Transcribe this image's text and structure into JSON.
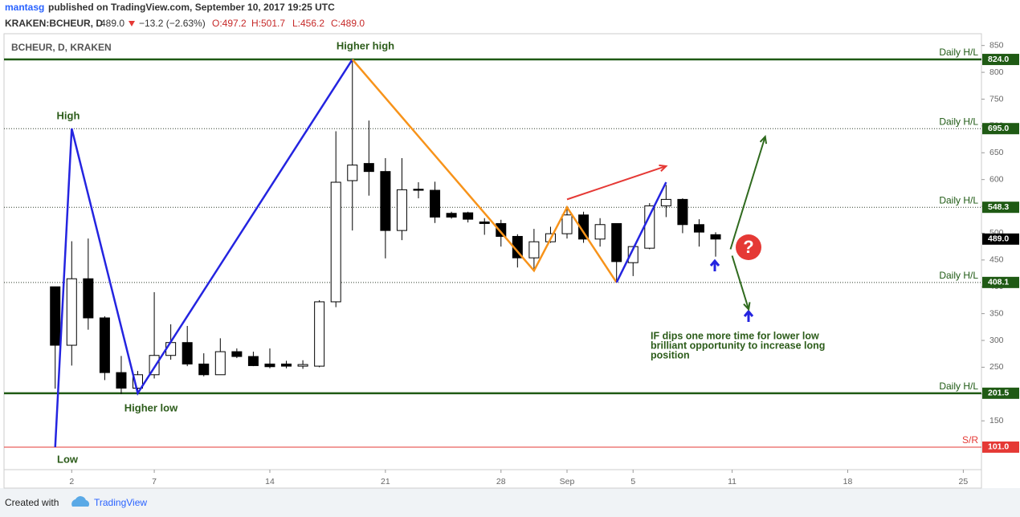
{
  "header": {
    "user": "mantasg",
    "published": "published on TradingView.com, September 10, 2017 19:25 UTC",
    "symbol": "KRAKEN:BCHEUR, D",
    "price": "489.0",
    "change": "−13.2 (−2.63%)",
    "open": "O:497.2",
    "high": "H:501.7",
    "low": "L:456.2",
    "close": "C:489.0"
  },
  "footer": {
    "created": "Created with",
    "brand": "TradingView"
  },
  "chart_data": {
    "type": "candlestick",
    "title": "BCHEUR, D, KRAKEN",
    "x": [
      1,
      2,
      3,
      4,
      5,
      6,
      7,
      8,
      9,
      10,
      11,
      12,
      13,
      14,
      15,
      16,
      17,
      18,
      19,
      20,
      21,
      22,
      23,
      24,
      25,
      26,
      27,
      28,
      29,
      30,
      31,
      32,
      33,
      34,
      35,
      36,
      37,
      38,
      39,
      40,
      41
    ],
    "open": [
      400,
      291,
      415,
      342,
      240,
      211,
      236,
      272,
      296,
      256,
      236,
      279,
      270,
      256,
      256,
      252,
      252,
      372,
      598,
      630,
      615,
      505,
      582,
      580,
      537,
      538,
      521,
      518,
      494,
      454,
      484,
      499,
      534,
      489,
      518,
      445,
      472,
      551,
      563,
      516,
      497.2
    ],
    "high": [
      400,
      485,
      490,
      345,
      271,
      243,
      390,
      330,
      327,
      276,
      304,
      285,
      279,
      285,
      262,
      263,
      375,
      690,
      824,
      710,
      640,
      640,
      595,
      596,
      540,
      540,
      528,
      525,
      498,
      508,
      512,
      548,
      540,
      528,
      518,
      476,
      556,
      590,
      565,
      526,
      501.7
    ],
    "low": [
      210,
      253,
      320,
      226,
      200,
      204,
      229,
      264,
      252,
      233,
      236,
      267,
      252,
      248,
      248,
      247,
      250,
      362,
      505,
      570,
      453,
      487,
      565,
      519,
      527,
      520,
      497,
      475,
      436,
      430,
      482,
      490,
      482,
      475,
      410,
      420,
      470,
      530,
      500,
      475,
      456.2
    ],
    "close": [
      291,
      415,
      342,
      240,
      211,
      236,
      272,
      296,
      256,
      236,
      279,
      270,
      253,
      251,
      252,
      255,
      372,
      595,
      627,
      615,
      505,
      581,
      580,
      530,
      530,
      526,
      518,
      494,
      454,
      484,
      499,
      534,
      489,
      516,
      447,
      475,
      551,
      563,
      516,
      502,
      489.0
    ],
    "up_color": "#ffffff",
    "down_color": "#000000",
    "xlim": [
      -2.1,
      57.1
    ],
    "xticks": [
      2,
      7,
      14,
      21,
      28,
      {
        "value": 32,
        "label": "Sep"
      },
      {
        "value": 36,
        "label": "5"
      },
      {
        "value": 42,
        "label": "11"
      },
      {
        "value": 49,
        "label": "18"
      },
      {
        "value": 56,
        "label": "25"
      }
    ],
    "ylim": [
      59,
      872
    ],
    "yticks": [
      150,
      200,
      250,
      300,
      350,
      400,
      450,
      500,
      550,
      600,
      650,
      700,
      750,
      800,
      850
    ],
    "levels": {
      "values": [
        824,
        695,
        548.3,
        408.1,
        201.5,
        101
      ],
      "value_labels": [
        "824.0",
        "695.0",
        "548.3",
        "408.1",
        "201.5",
        "101.0"
      ],
      "tags": [
        "Daily H/L",
        "Daily H/L",
        "Daily H/L",
        "Daily H/L",
        "Daily H/L",
        "S/R"
      ],
      "colors": [
        "#1f5a14",
        "#1f5a14",
        "#1f5a14",
        "#1f5a14",
        "#1f5a14",
        "#e53935"
      ],
      "styles": [
        "solid",
        "dotted",
        "dotted",
        "dotted",
        "solid",
        "thin"
      ]
    },
    "last": {
      "value": 489,
      "label": "489.0"
    },
    "drawings": [
      {
        "color": "#2424e0",
        "points": [
          [
            1,
            101
          ],
          [
            2,
            695
          ],
          [
            6,
            201.5
          ],
          [
            19,
            824
          ]
        ]
      },
      {
        "color": "#f7931a",
        "points": [
          [
            19,
            824
          ],
          [
            30,
            430
          ],
          [
            32,
            548.3
          ],
          [
            35,
            408.1
          ]
        ]
      },
      {
        "color": "#2424e0",
        "points": [
          [
            35,
            408.1
          ],
          [
            38,
            595
          ]
        ]
      },
      {
        "color": "#e53935",
        "arrow": true,
        "points": [
          [
            32,
            563
          ],
          [
            38,
            625
          ]
        ]
      },
      {
        "color": "#2f6a1e",
        "arrow": true,
        "points": [
          [
            41.9,
            470
          ],
          [
            44,
            680
          ]
        ]
      },
      {
        "color": "#2f6a1e",
        "arrow": true,
        "points": [
          [
            42,
            458
          ],
          [
            43,
            358
          ]
        ]
      }
    ],
    "annotations": [
      "Higher high",
      "High",
      "Higher low",
      "Low",
      "IF dips one more time for lower low",
      "brilliant opportunity to increase long",
      "position"
    ],
    "question_mark": "?"
  }
}
